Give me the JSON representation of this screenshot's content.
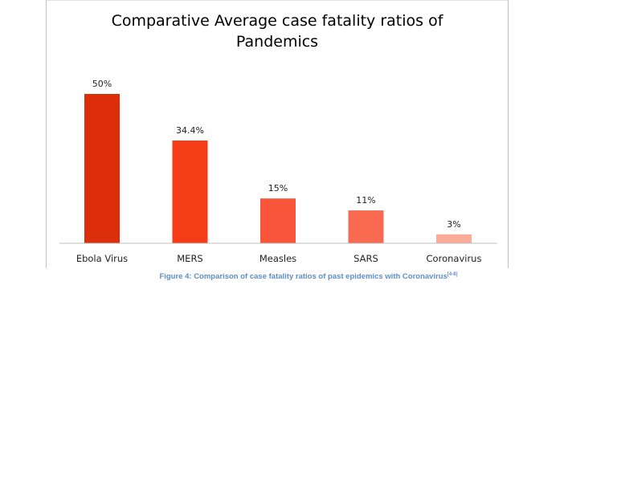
{
  "chart_data": {
    "type": "bar",
    "title_lines": [
      "Comparative Average case fatality ratios of",
      "Pandemics"
    ],
    "categories": [
      "Ebola Virus",
      "MERS",
      "Measles",
      "SARS",
      "Coronavirus"
    ],
    "values": [
      50,
      34.4,
      15,
      11,
      3
    ],
    "data_labels": [
      "50%",
      "34.4%",
      "15%",
      "11%",
      "3%"
    ],
    "bar_colors": [
      "#dc2e0b",
      "#f43c17",
      "#f8553a",
      "#fa6a50",
      "#fbac99"
    ],
    "ylim": [
      0,
      50
    ],
    "grid": false,
    "legend": "none"
  },
  "caption": {
    "text": "Figure 4: Comparison of case fatality ratios of past epidemics with Coronavirus",
    "reference": "[4-8]",
    "color": "#5b8fc9"
  }
}
